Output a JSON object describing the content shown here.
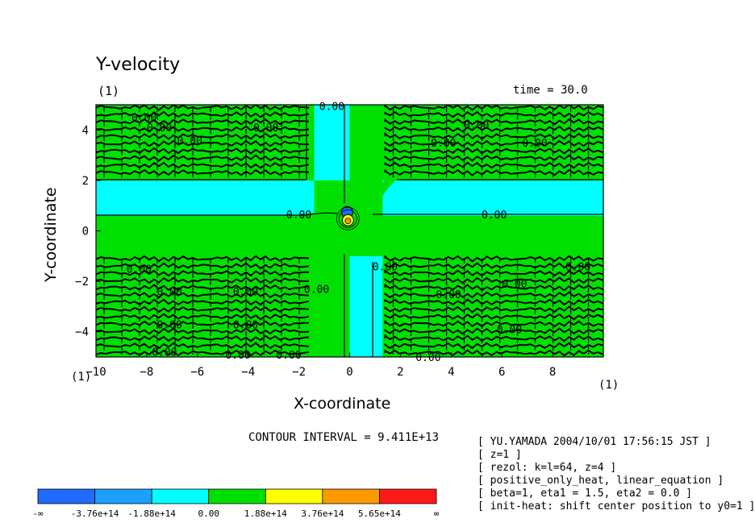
{
  "chart_data": {
    "type": "contour",
    "title": "Y-velocity",
    "panel_label": "(1)",
    "time_label": "time = 30.0",
    "xlabel": "X-coordinate",
    "ylabel": "Y-coordinate",
    "x_unit_label": "(1)",
    "y_unit_label": "(1)",
    "xlim": [
      -10,
      10
    ],
    "ylim": [
      -5,
      5
    ],
    "xticks": [
      -10,
      -8,
      -6,
      -4,
      -2,
      0,
      2,
      4,
      6,
      8
    ],
    "yticks": [
      -4,
      -2,
      0,
      2,
      4
    ],
    "contour_interval_text": "CONTOUR INTERVAL = 9.411E+13",
    "contour_label": "0.00",
    "colorbar": {
      "labels": [
        "-∞",
        "-3.76e+14",
        "-1.88e+14",
        "0.00",
        "1.88e+14",
        "3.76e+14",
        "5.65e+14",
        "∞"
      ],
      "colors": [
        "#1f6cff",
        "#1ca0ff",
        "#00ffff",
        "#00e000",
        "#ffff00",
        "#ff9900",
        "#ff1a1a"
      ]
    },
    "regions": [
      {
        "sign": "negative",
        "color": "#00ffff",
        "x": [
          -10,
          -1.4
        ],
        "y": [
          0.6,
          2.0
        ]
      },
      {
        "sign": "negative",
        "color": "#00ffff",
        "x": [
          1.3,
          10
        ],
        "y": [
          0.6,
          2.0
        ]
      },
      {
        "sign": "negative",
        "color": "#00ffff",
        "x": [
          -1.4,
          0
        ],
        "y": [
          2.0,
          5.0
        ]
      },
      {
        "sign": "negative",
        "color": "#00ffff",
        "x": [
          0,
          1.3
        ],
        "y": [
          -5.0,
          -1.0
        ]
      }
    ],
    "grid": false
  },
  "footer": {
    "lines": [
      "[ YU.YAMADA 2004/10/01 17:56:15 JST ]",
      "[ z=1 ]",
      "[ rezol: k=l=64, z=4 ]",
      "[ positive_only_heat, linear_equation ]",
      "[ beta=1, eta1 = 1.5, eta2 = 0.0 ]",
      "[ init-heat: shift center position to y0=1 ]"
    ]
  }
}
